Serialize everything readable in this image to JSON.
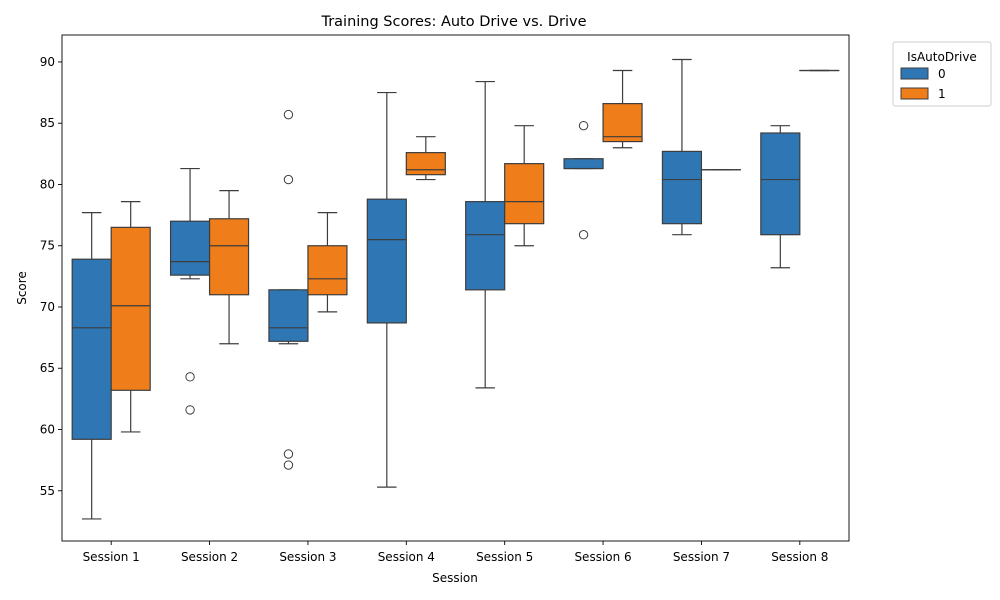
{
  "chart_data": {
    "type": "box",
    "title": "Training Scores: Auto Drive vs. Drive",
    "xlabel": "Session",
    "ylabel": "Score",
    "ylim": [
      50.9,
      92.2
    ],
    "yticks": [
      55,
      60,
      65,
      70,
      75,
      80,
      85,
      90
    ],
    "categories": [
      "Session 1",
      "Session 2",
      "Session 3",
      "Session 4",
      "Session 5",
      "Session 6",
      "Session 7",
      "Session 8"
    ],
    "legend": {
      "title": "IsAutoDrive",
      "placement": "outside-top-right"
    },
    "series": [
      {
        "name": "0",
        "color": "#2f77b4",
        "boxes": [
          {
            "whislo": 52.7,
            "q1": 59.2,
            "med": 68.3,
            "q3": 73.9,
            "whishi": 77.7,
            "fliers": []
          },
          {
            "whislo": 72.3,
            "q1": 72.6,
            "med": 73.7,
            "q3": 77.0,
            "whishi": 81.3,
            "fliers": [
              64.3,
              61.6
            ]
          },
          {
            "whislo": 67.0,
            "q1": 67.2,
            "med": 68.3,
            "q3": 71.4,
            "whishi": 71.4,
            "fliers": [
              85.7,
              80.4,
              58.0,
              57.1
            ]
          },
          {
            "whislo": 55.3,
            "q1": 68.7,
            "med": 75.5,
            "q3": 78.8,
            "whishi": 87.5,
            "fliers": []
          },
          {
            "whislo": 63.4,
            "q1": 71.4,
            "med": 75.9,
            "q3": 78.6,
            "whishi": 88.4,
            "fliers": []
          },
          {
            "whislo": 81.3,
            "q1": 81.3,
            "med": 81.3,
            "q3": 82.1,
            "whishi": 82.1,
            "fliers": [
              84.8,
              75.9
            ]
          },
          {
            "whislo": 75.9,
            "q1": 76.8,
            "med": 80.4,
            "q3": 82.7,
            "whishi": 90.2,
            "fliers": []
          },
          {
            "whislo": 73.2,
            "q1": 75.9,
            "med": 80.4,
            "q3": 84.2,
            "whishi": 84.8,
            "fliers": []
          }
        ]
      },
      {
        "name": "1",
        "color": "#ef7d1a",
        "boxes": [
          {
            "whislo": 59.8,
            "q1": 63.2,
            "med": 70.1,
            "q3": 76.5,
            "whishi": 78.6,
            "fliers": []
          },
          {
            "whislo": 67.0,
            "q1": 71.0,
            "med": 75.0,
            "q3": 77.2,
            "whishi": 79.5,
            "fliers": []
          },
          {
            "whislo": 69.6,
            "q1": 71.0,
            "med": 72.3,
            "q3": 75.0,
            "whishi": 77.7,
            "fliers": []
          },
          {
            "whislo": 80.4,
            "q1": 80.8,
            "med": 81.2,
            "q3": 82.6,
            "whishi": 83.9,
            "fliers": []
          },
          {
            "whislo": 75.0,
            "q1": 76.8,
            "med": 78.6,
            "q3": 81.7,
            "whishi": 84.8,
            "fliers": []
          },
          {
            "whislo": 83.0,
            "q1": 83.5,
            "med": 83.9,
            "q3": 86.6,
            "whishi": 89.3,
            "fliers": []
          },
          {
            "whislo": 81.2,
            "q1": 81.2,
            "med": 81.2,
            "q3": 81.2,
            "whishi": 81.2,
            "fliers": []
          },
          {
            "whislo": 89.3,
            "q1": 89.3,
            "med": 89.3,
            "q3": 89.3,
            "whishi": 89.3,
            "fliers": []
          }
        ]
      }
    ]
  }
}
